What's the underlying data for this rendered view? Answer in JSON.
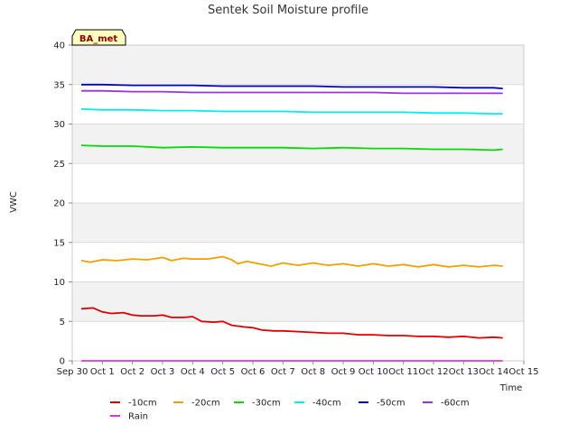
{
  "chart_data": {
    "type": "line",
    "title": "Sentek Soil Moisture profile",
    "xlabel": "Time",
    "ylabel": "VWC",
    "site_label": "BA_met",
    "ylim": [
      0,
      40
    ],
    "yticks": [
      0,
      5,
      10,
      15,
      20,
      25,
      30,
      35,
      40
    ],
    "xlim": [
      0,
      15
    ],
    "xticks": [
      {
        "v": 0,
        "label": "Sep 30"
      },
      {
        "v": 1,
        "label": "Oct 1"
      },
      {
        "v": 2,
        "label": "Oct 2"
      },
      {
        "v": 3,
        "label": "Oct 3"
      },
      {
        "v": 4,
        "label": "Oct 4"
      },
      {
        "v": 5,
        "label": "Oct 5"
      },
      {
        "v": 6,
        "label": "Oct 6"
      },
      {
        "v": 7,
        "label": "Oct 7"
      },
      {
        "v": 8,
        "label": "Oct 8"
      },
      {
        "v": 9,
        "label": "Oct 9"
      },
      {
        "v": 10,
        "label": "Oct 10"
      },
      {
        "v": 11,
        "label": "Oct 11"
      },
      {
        "v": 12,
        "label": "Oct 12"
      },
      {
        "v": 13,
        "label": "Oct 13"
      },
      {
        "v": 14,
        "label": "Oct 14"
      },
      {
        "v": 15,
        "label": "Oct 15"
      }
    ],
    "grid": "horizontal bands",
    "legend_placement": "bottom",
    "series": [
      {
        "name": "-10cm",
        "color": "#dd0000",
        "x": [
          0.3,
          0.7,
          1.0,
          1.3,
          1.7,
          2.0,
          2.3,
          2.7,
          3.0,
          3.3,
          3.7,
          4.0,
          4.3,
          4.7,
          5.0,
          5.3,
          5.7,
          6.0,
          6.3,
          6.7,
          7.0,
          7.5,
          8.0,
          8.5,
          9.0,
          9.5,
          10.0,
          10.5,
          11.0,
          11.5,
          12.0,
          12.5,
          13.0,
          13.5,
          14.0,
          14.3
        ],
        "y": [
          6.6,
          6.7,
          6.2,
          6.0,
          6.1,
          5.8,
          5.7,
          5.7,
          5.8,
          5.5,
          5.5,
          5.6,
          5.0,
          4.9,
          5.0,
          4.5,
          4.3,
          4.2,
          3.9,
          3.8,
          3.8,
          3.7,
          3.6,
          3.5,
          3.5,
          3.3,
          3.3,
          3.2,
          3.2,
          3.1,
          3.1,
          3.0,
          3.1,
          2.9,
          3.0,
          2.9
        ]
      },
      {
        "name": "-20cm",
        "color": "#f0a000",
        "x": [
          0.3,
          0.6,
          1.0,
          1.5,
          2.0,
          2.5,
          3.0,
          3.3,
          3.7,
          4.0,
          4.5,
          5.0,
          5.3,
          5.5,
          5.8,
          6.2,
          6.6,
          7.0,
          7.5,
          8.0,
          8.5,
          9.0,
          9.5,
          10.0,
          10.5,
          11.0,
          11.5,
          12.0,
          12.5,
          13.0,
          13.5,
          14.0,
          14.3
        ],
        "y": [
          12.7,
          12.5,
          12.8,
          12.7,
          12.9,
          12.8,
          13.1,
          12.7,
          13.0,
          12.9,
          12.9,
          13.2,
          12.8,
          12.3,
          12.6,
          12.3,
          12.0,
          12.4,
          12.1,
          12.4,
          12.1,
          12.3,
          12.0,
          12.3,
          12.0,
          12.2,
          11.9,
          12.2,
          11.9,
          12.1,
          11.9,
          12.1,
          12.0
        ]
      },
      {
        "name": "-30cm",
        "color": "#00dd00",
        "x": [
          0.3,
          1.0,
          2.0,
          3.0,
          4.0,
          5.0,
          6.0,
          7.0,
          8.0,
          9.0,
          10.0,
          11.0,
          12.0,
          13.0,
          14.0,
          14.3
        ],
        "y": [
          27.3,
          27.2,
          27.2,
          27.0,
          27.1,
          27.0,
          27.0,
          27.0,
          26.9,
          27.0,
          26.9,
          26.9,
          26.8,
          26.8,
          26.7,
          26.8
        ]
      },
      {
        "name": "-40cm",
        "color": "#00eeee",
        "x": [
          0.3,
          1.0,
          2.0,
          3.0,
          4.0,
          5.0,
          6.0,
          7.0,
          8.0,
          9.0,
          10.0,
          11.0,
          12.0,
          13.0,
          14.0,
          14.3
        ],
        "y": [
          31.9,
          31.8,
          31.8,
          31.7,
          31.7,
          31.6,
          31.6,
          31.6,
          31.5,
          31.5,
          31.5,
          31.5,
          31.4,
          31.4,
          31.3,
          31.3
        ]
      },
      {
        "name": "-50cm",
        "color": "#0000cc",
        "x": [
          0.3,
          1.0,
          2.0,
          3.0,
          4.0,
          5.0,
          6.0,
          7.0,
          8.0,
          9.0,
          10.0,
          11.0,
          12.0,
          13.0,
          14.0,
          14.3
        ],
        "y": [
          35.0,
          35.0,
          34.9,
          34.9,
          34.9,
          34.8,
          34.8,
          34.8,
          34.8,
          34.7,
          34.7,
          34.7,
          34.7,
          34.6,
          34.6,
          34.5
        ]
      },
      {
        "name": "-60cm",
        "color": "#9933dd",
        "x": [
          0.3,
          1.0,
          2.0,
          3.0,
          4.0,
          5.0,
          6.0,
          7.0,
          8.0,
          9.0,
          10.0,
          11.0,
          12.0,
          13.0,
          14.0,
          14.3
        ],
        "y": [
          34.2,
          34.2,
          34.1,
          34.1,
          34.0,
          34.0,
          34.0,
          34.0,
          34.0,
          34.0,
          34.0,
          33.9,
          33.9,
          33.9,
          33.9,
          33.9
        ]
      },
      {
        "name": "Rain",
        "color": "#dd33dd",
        "x": [
          0.3,
          14.3
        ],
        "y": [
          0,
          0
        ]
      }
    ]
  }
}
